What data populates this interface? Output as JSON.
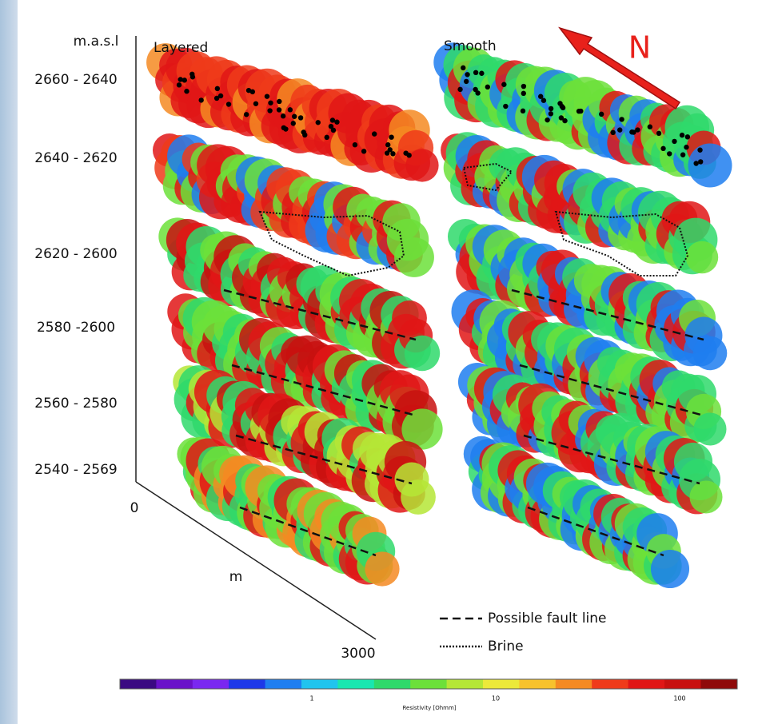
{
  "figure": {
    "axis_title": "m.a.s.l",
    "panels": [
      "Layered",
      "Smooth"
    ],
    "north": "N",
    "depths": [
      "2660 - 2640",
      "2640 - 2620",
      "2620 - 2600",
      "2580 -2600",
      "2560 - 2580",
      "2540 - 2569"
    ],
    "distance_axis": {
      "start": "0",
      "unit": "m",
      "end": "3000"
    },
    "legend": [
      "Possible fault line",
      "Brine"
    ],
    "colorbar": {
      "ticks": [
        "1",
        "10",
        "100"
      ],
      "title": "Resistivity [Ohmm]"
    }
  }
}
